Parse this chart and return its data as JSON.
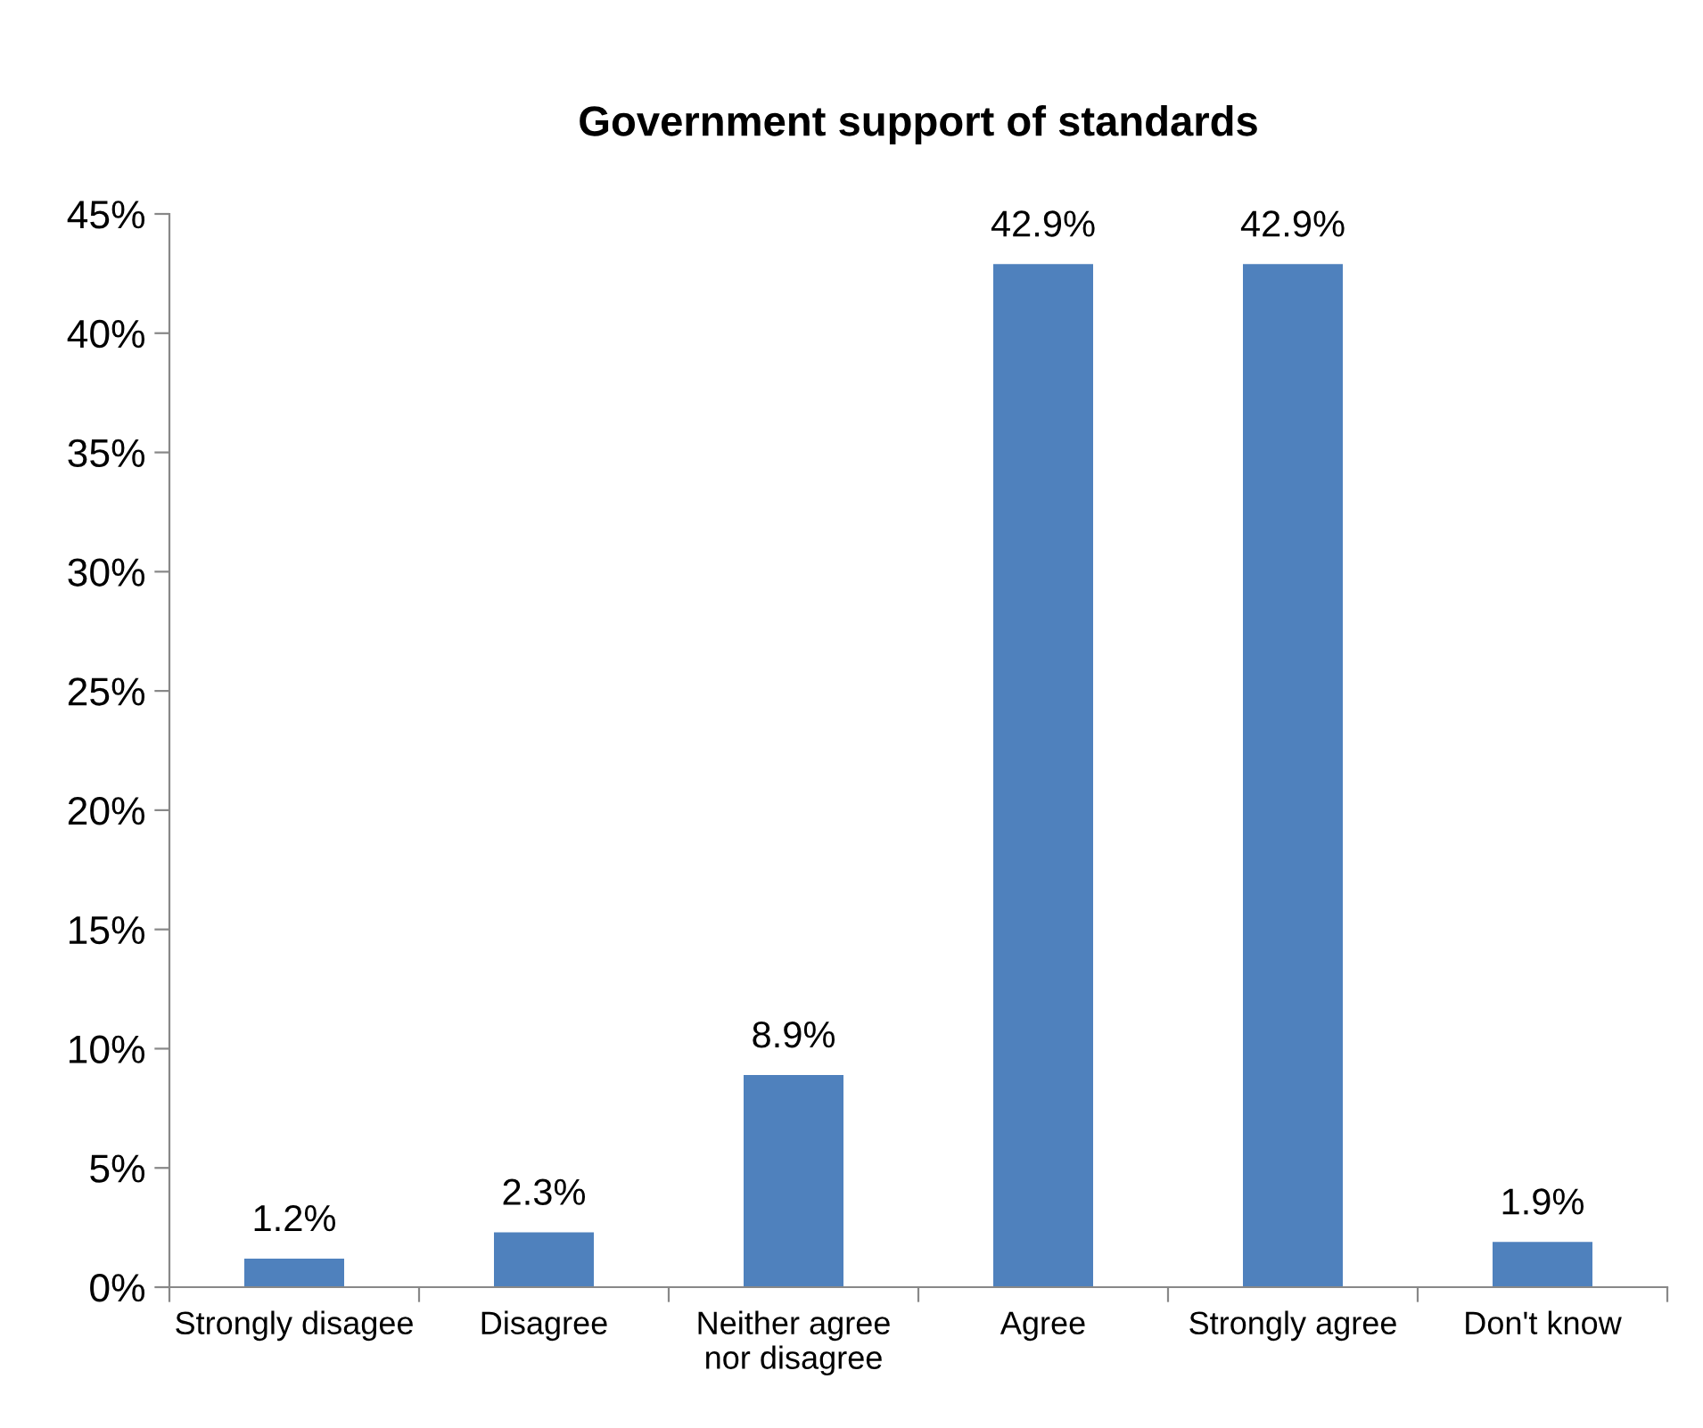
{
  "chart_data": {
    "type": "bar",
    "title": "Government support of standards",
    "categories": [
      "Strongly disagee",
      "Disagree",
      "Neither agree nor disagree",
      "Agree",
      "Strongly agree",
      "Don't know"
    ],
    "values": [
      1.2,
      2.3,
      8.9,
      42.9,
      42.9,
      1.9
    ],
    "value_labels": [
      "1.2%",
      "2.3%",
      "8.9%",
      "42.9%",
      "42.9%",
      "1.9%"
    ],
    "color": "#4f81bd",
    "ylim": [
      0,
      45
    ],
    "yticks": [
      {
        "value": 0,
        "label": "0%"
      },
      {
        "value": 5,
        "label": "5%"
      },
      {
        "value": 10,
        "label": "10%"
      },
      {
        "value": 15,
        "label": "15%"
      },
      {
        "value": 20,
        "label": "20%"
      },
      {
        "value": 25,
        "label": "25%"
      },
      {
        "value": 30,
        "label": "30%"
      },
      {
        "value": 35,
        "label": "35%"
      },
      {
        "value": 40,
        "label": "40%"
      },
      {
        "value": 45,
        "label": "45%"
      }
    ],
    "grid": false,
    "legend": false
  }
}
